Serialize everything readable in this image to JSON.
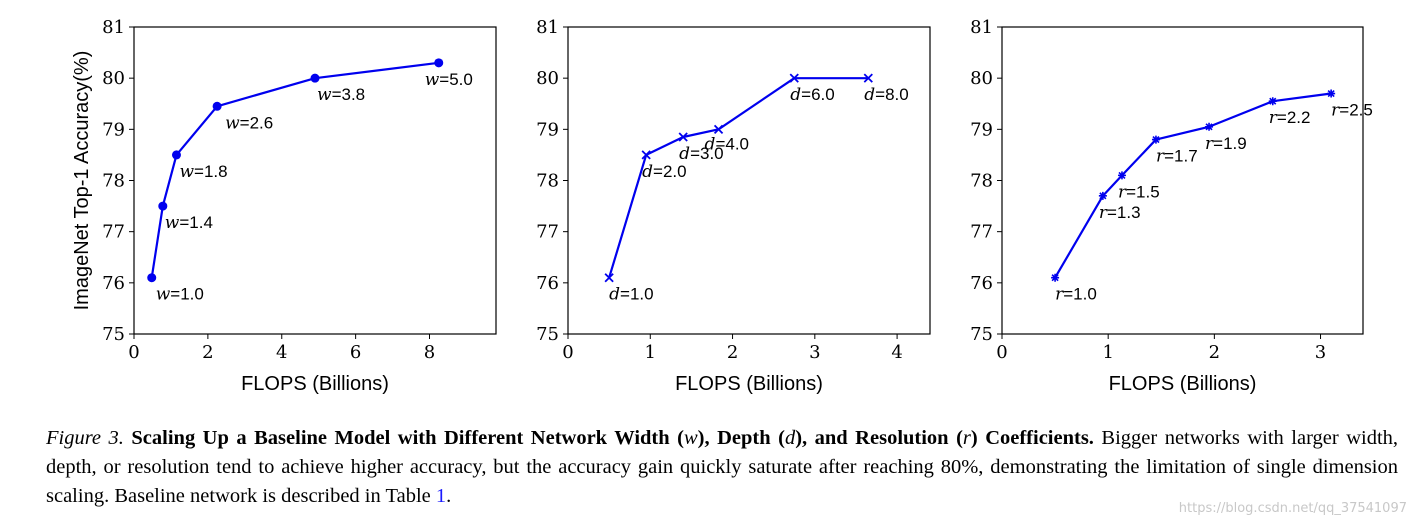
{
  "colors": {
    "series": "#0000ee",
    "axis": "#000000",
    "ref": "#1a1aff",
    "watermark": "#c8c8c8"
  },
  "chart_data": [
    {
      "type": "line",
      "marker": "circle",
      "xlabel": "FLOPS (Billions)",
      "ylabel": "ImageNet Top-1 Accuracy(%)",
      "xlim": [
        0,
        9.8
      ],
      "ylim": [
        75,
        81
      ],
      "xticks": [
        0,
        2,
        4,
        6,
        8
      ],
      "yticks": [
        75,
        76,
        77,
        78,
        79,
        80,
        81
      ],
      "grid": false,
      "series": [
        {
          "x": [
            0.48,
            0.78,
            1.15,
            2.25,
            4.9,
            8.25
          ],
          "y": [
            76.1,
            77.5,
            78.5,
            79.45,
            80.0,
            80.3
          ],
          "labels": [
            {
              "sym": "w",
              "val": "=1.0"
            },
            {
              "sym": "w",
              "val": "=1.4"
            },
            {
              "sym": "w",
              "val": "=1.8"
            },
            {
              "sym": "w",
              "val": "=2.6"
            },
            {
              "sym": "w",
              "val": "=3.8"
            },
            {
              "sym": "w",
              "val": "=5.0"
            }
          ]
        }
      ]
    },
    {
      "type": "line",
      "marker": "x",
      "xlabel": "FLOPS (Billions)",
      "ylabel": "",
      "xlim": [
        0,
        4.4
      ],
      "ylim": [
        75,
        81
      ],
      "xticks": [
        0,
        1,
        2,
        3,
        4
      ],
      "yticks": [
        75,
        76,
        77,
        78,
        79,
        80,
        81
      ],
      "grid": false,
      "series": [
        {
          "x": [
            0.5,
            0.95,
            1.4,
            1.83,
            2.75,
            3.65
          ],
          "y": [
            76.1,
            78.5,
            78.85,
            79.0,
            80.0,
            80.0
          ],
          "labels": [
            {
              "sym": "d",
              "val": "=1.0"
            },
            {
              "sym": "d",
              "val": "=2.0"
            },
            {
              "sym": "d",
              "val": "=3.0"
            },
            {
              "sym": "d",
              "val": "=4.0"
            },
            {
              "sym": "d",
              "val": "=6.0"
            },
            {
              "sym": "d",
              "val": "=8.0"
            }
          ]
        }
      ]
    },
    {
      "type": "line",
      "marker": "star",
      "xlabel": "FLOPS (Billions)",
      "ylabel": "",
      "xlim": [
        0,
        3.4
      ],
      "ylim": [
        75,
        81
      ],
      "xticks": [
        0,
        1,
        2,
        3
      ],
      "yticks": [
        75,
        76,
        77,
        78,
        79,
        80,
        81
      ],
      "grid": false,
      "series": [
        {
          "x": [
            0.5,
            0.95,
            1.13,
            1.45,
            1.95,
            2.55,
            3.1
          ],
          "y": [
            76.1,
            77.7,
            78.1,
            78.8,
            79.05,
            79.55,
            79.7
          ],
          "labels": [
            {
              "sym": "r",
              "val": "=1.0"
            },
            {
              "sym": "r",
              "val": "=1.3"
            },
            {
              "sym": "r",
              "val": "=1.5"
            },
            {
              "sym": "r",
              "val": "=1.7"
            },
            {
              "sym": "r",
              "val": "=1.9"
            },
            {
              "sym": "r",
              "val": "=2.2"
            },
            {
              "sym": "r",
              "val": "=2.5"
            }
          ]
        }
      ]
    }
  ],
  "caption": {
    "label": "Figure 3.",
    "title_1": "Scaling Up a Baseline Model with Different Network Width (",
    "w": "w",
    "title_2": "), Depth (",
    "d": "d",
    "title_3": "), and Resolution (",
    "r": "r",
    "title_4": ") Coefficients.",
    "body": " Bigger networks with larger width, depth, or resolution tend to achieve higher accuracy, but the accuracy gain quickly saturate after reaching 80%, demonstrating the limitation of single dimension scaling. Baseline network is described in Table ",
    "ref": "1",
    "end": "."
  },
  "watermark": "https://blog.csdn.net/qq_37541097"
}
